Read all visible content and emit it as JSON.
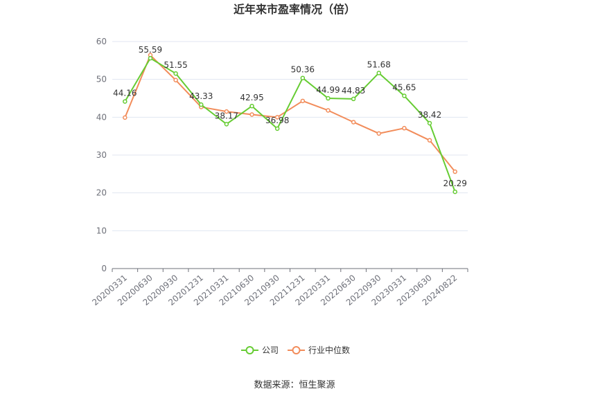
{
  "chart_data": {
    "type": "line",
    "title": "近年来市盈率情况（倍）",
    "categories": [
      "20200331",
      "20200630",
      "20200930",
      "20201231",
      "20210331",
      "20210630",
      "20210930",
      "20211231",
      "20220331",
      "20220630",
      "20220930",
      "20230331",
      "20230630",
      "20240822"
    ],
    "ylim": [
      0,
      60
    ],
    "yticks": [
      0,
      10,
      20,
      30,
      40,
      50,
      60
    ],
    "grid": true,
    "legend_position": "bottom",
    "series": [
      {
        "name": "公司",
        "color": "#66cc33",
        "values": [
          44.16,
          55.59,
          51.55,
          43.33,
          38.17,
          42.95,
          36.98,
          50.36,
          44.99,
          44.83,
          51.68,
          45.65,
          38.42,
          20.29
        ],
        "labels": [
          "44.16",
          "55.59",
          "51.55",
          "43.33",
          "38.17",
          "42.95",
          "36.98",
          "50.36",
          "44.99",
          "44.83",
          "51.68",
          "45.65",
          "38.42",
          "20.29"
        ]
      },
      {
        "name": "行业中位数",
        "color": "#f28c5a",
        "values": [
          39.9,
          56.4,
          49.8,
          42.7,
          41.5,
          40.7,
          40.0,
          44.3,
          41.8,
          38.7,
          35.7,
          37.1,
          33.9,
          25.6
        ]
      }
    ]
  },
  "source": "数据来源：恒生聚源"
}
